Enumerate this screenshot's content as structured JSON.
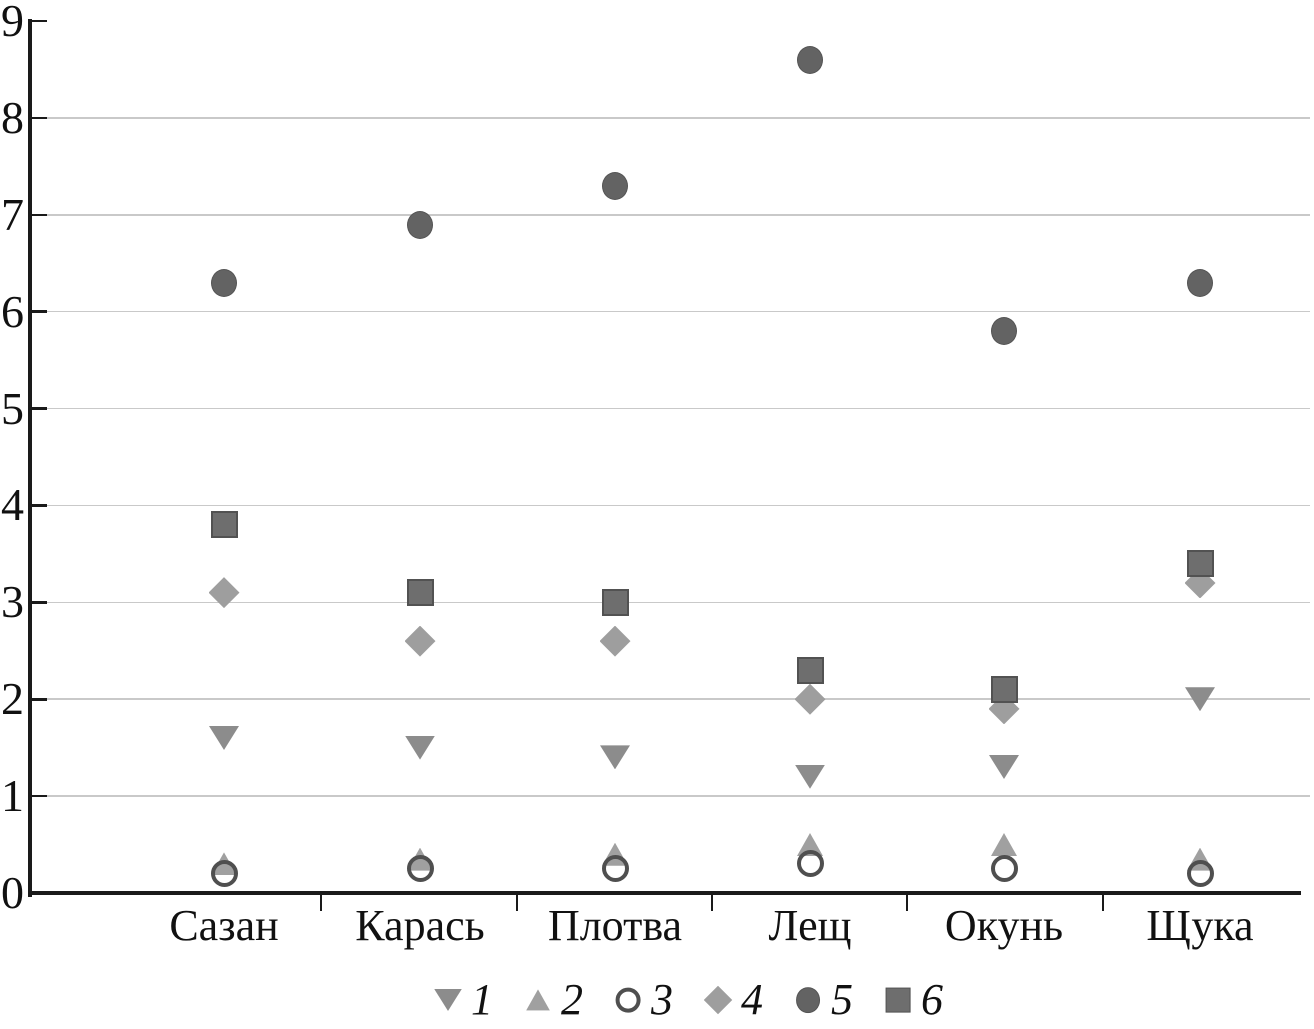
{
  "chart_data": {
    "type": "scatter",
    "categories": [
      "Сазан",
      "Карась",
      "Плотва",
      "Лещ",
      "Окунь",
      "Щука"
    ],
    "series": [
      {
        "name": "1",
        "marker": "triangle-down",
        "color": "#8c8c8c",
        "values": [
          1.6,
          1.5,
          1.4,
          1.2,
          1.3,
          2.0
        ]
      },
      {
        "name": "2",
        "marker": "triangle-up",
        "color": "#a0a0a0",
        "values": [
          0.3,
          0.35,
          0.4,
          0.5,
          0.5,
          0.35
        ]
      },
      {
        "name": "3",
        "marker": "circle-open",
        "color": "#4f4f4f",
        "values": [
          0.2,
          0.25,
          0.25,
          0.3,
          0.25,
          0.2
        ]
      },
      {
        "name": "4",
        "marker": "diamond",
        "color": "#9e9e9e",
        "values": [
          3.1,
          2.6,
          2.6,
          2.0,
          1.9,
          3.2
        ]
      },
      {
        "name": "5",
        "marker": "circle-filled",
        "color": "#636363",
        "values": [
          6.3,
          6.9,
          7.3,
          8.6,
          5.8,
          6.3
        ]
      },
      {
        "name": "6",
        "marker": "square",
        "color": "#6e6e6e",
        "values": [
          3.8,
          3.1,
          3.0,
          2.3,
          2.1,
          3.4
        ]
      }
    ],
    "ylim": [
      0,
      9
    ],
    "yticks": [
      "0",
      "1",
      "2",
      "3",
      "4",
      "5",
      "6",
      "7",
      "8",
      "9"
    ],
    "gridlines_at": [
      1,
      2,
      3,
      4,
      5,
      6,
      7,
      8
    ],
    "grid": true,
    "legend_position": "bottom",
    "legend_labels": [
      "1",
      "2",
      "3",
      "4",
      "5",
      "6"
    ],
    "axis_color": "#1a1a1a",
    "gridline_color": "#c9c9c9",
    "background_color": "#ffffff"
  }
}
